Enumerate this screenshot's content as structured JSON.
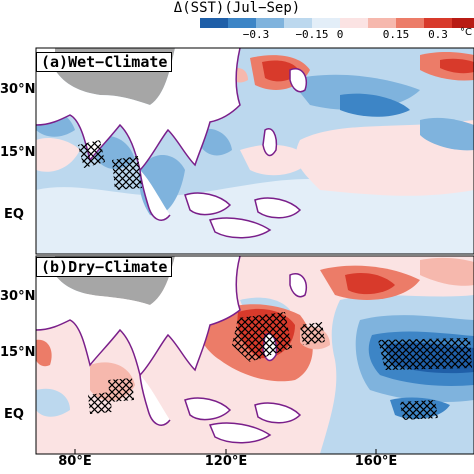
{
  "title": "Δ(SST)(Jul−Sep)",
  "colorbar": {
    "ticks": [
      "−0.3",
      "−0.15",
      "0",
      "0.15",
      "0.3"
    ],
    "unit": "°C",
    "colors": [
      "#1f5fa8",
      "#3d85c6",
      "#7fb3dd",
      "#bcd8ee",
      "#e3eef8",
      "#fbe3e3",
      "#f6b8ad",
      "#ec7c68",
      "#d83a2b",
      "#b81b14"
    ]
  },
  "panels": [
    {
      "label": "(a)Wet−Climate"
    },
    {
      "label": "(b)Dry−Climate"
    }
  ],
  "y_ticks_a": [
    "30°N",
    "15°N",
    "EQ"
  ],
  "y_ticks_b": [
    "30°N",
    "15°N",
    "EQ"
  ],
  "x_ticks": [
    "80°E",
    "120°E",
    "160°E"
  ],
  "colors": {
    "land_mask": "#a6a6a6",
    "coastline": "#7a1f8a",
    "hatch": "#000000"
  }
}
